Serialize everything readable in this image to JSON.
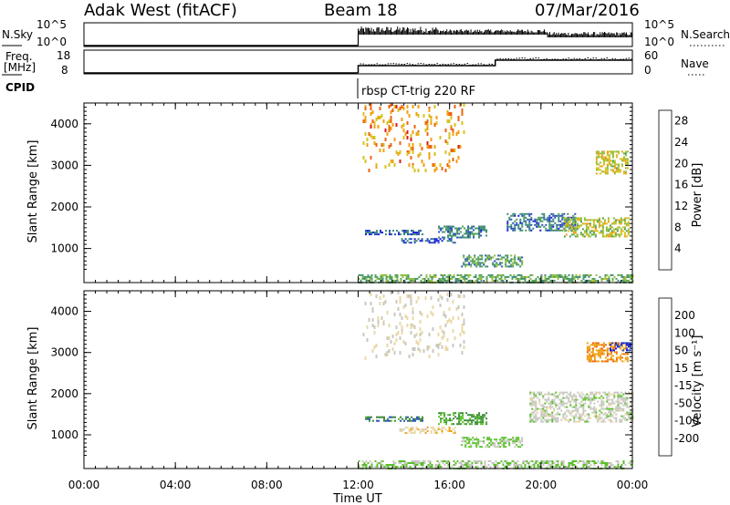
{
  "header": {
    "station": "Adak West (fitACF)",
    "beam": "Beam 18",
    "date": "07/Mar/2016"
  },
  "top_panels": {
    "nsky": {
      "label": "N.Sky",
      "ticks_left": [
        "10^5",
        "10^0"
      ],
      "ticks_right": [
        "10^5",
        "10^0"
      ],
      "right_label": "N.Search"
    },
    "freq": {
      "label_lines": [
        "Freq.",
        "[MHz]"
      ],
      "ticks_left": [
        "18",
        "8"
      ],
      "ticks_right": [
        "60",
        "0"
      ],
      "right_label": "Nave"
    },
    "cpid": {
      "label": "CPID",
      "program": "rbsp CT-trig 220 RF"
    }
  },
  "chart_data": [
    {
      "type": "heatmap",
      "name": "power",
      "xlabel": "",
      "ylabel": "Slant Range [km]",
      "x_ticks": [
        "00:00",
        "04:00",
        "08:00",
        "12:00",
        "16:00",
        "20:00",
        "00:00"
      ],
      "xlim_hours": [
        0,
        24
      ],
      "ylim_km": [
        180,
        4500
      ],
      "y_ticks": [
        1000,
        2000,
        3000,
        4000
      ],
      "colorbar": {
        "label": "Power [dB]",
        "ticks": [
          4,
          8,
          12,
          16,
          20,
          24,
          28
        ],
        "range": [
          0,
          30
        ],
        "colors": [
          "#1a1ae0",
          "#2a52b8",
          "#3d8a7a",
          "#4d9e5a",
          "#8cbe3c",
          "#d8c21e",
          "#f0a010",
          "#ee6410",
          "#e01818"
        ]
      },
      "echo_regions": [
        {
          "t": [
            12.0,
            24.0
          ],
          "r": [
            200,
            380
          ],
          "value": 12
        },
        {
          "t": [
            12.3,
            14.8
          ],
          "r": [
            1350,
            1450
          ],
          "value": 6
        },
        {
          "t": [
            13.8,
            16.2
          ],
          "r": [
            1150,
            1250
          ],
          "value": 5
        },
        {
          "t": [
            15.5,
            17.6
          ],
          "r": [
            1250,
            1550
          ],
          "value": 8
        },
        {
          "t": [
            16.5,
            19.2
          ],
          "r": [
            580,
            850
          ],
          "value": 10
        },
        {
          "t": [
            18.5,
            21.5
          ],
          "r": [
            1450,
            1850
          ],
          "value": 7
        },
        {
          "t": [
            21.0,
            23.8
          ],
          "r": [
            1300,
            1750
          ],
          "value": 16
        },
        {
          "t": [
            22.4,
            23.8
          ],
          "r": [
            2800,
            3350
          ],
          "value": 18
        },
        {
          "t": [
            12.2,
            16.6
          ],
          "r": [
            2900,
            4500
          ],
          "value": 22
        }
      ]
    },
    {
      "type": "heatmap",
      "name": "velocity",
      "xlabel": "Time UT",
      "ylabel": "Slant Range [km]",
      "x_ticks": [
        "00:00",
        "04:00",
        "08:00",
        "12:00",
        "16:00",
        "20:00",
        "00:00"
      ],
      "xlim_hours": [
        0,
        24
      ],
      "ylim_km": [
        180,
        4500
      ],
      "y_ticks": [
        1000,
        2000,
        3000,
        4000
      ],
      "colorbar": {
        "label": "Velocity [m s⁻¹]",
        "tick_labels": [
          "200",
          "100",
          "50",
          "15",
          "-15",
          "-50",
          "-100",
          "-200"
        ],
        "range": [
          -250,
          250
        ],
        "colors": [
          "#e01818",
          "#ee6410",
          "#f0a010",
          "#e8d8a8",
          "#c8c8c0",
          "#58c028",
          "#3a8a3a",
          "#2a52b8",
          "#1a1ae0"
        ]
      },
      "echo_regions": [
        {
          "t": [
            12.0,
            24.0
          ],
          "r": [
            200,
            380
          ],
          "value": 30
        },
        {
          "t": [
            12.3,
            14.8
          ],
          "r": [
            1350,
            1450
          ],
          "value": 120
        },
        {
          "t": [
            13.8,
            16.2
          ],
          "r": [
            1050,
            1200
          ],
          "value": -60
        },
        {
          "t": [
            15.5,
            17.6
          ],
          "r": [
            1250,
            1550
          ],
          "value": 90
        },
        {
          "t": [
            16.5,
            19.2
          ],
          "r": [
            700,
            950
          ],
          "value": 40
        },
        {
          "t": [
            19.5,
            24.0
          ],
          "r": [
            1300,
            2050
          ],
          "value": 0
        },
        {
          "t": [
            22.0,
            23.8
          ],
          "r": [
            2800,
            3250
          ],
          "value": -120
        },
        {
          "t": [
            23.0,
            23.9
          ],
          "r": [
            3050,
            3250
          ],
          "value": 200
        },
        {
          "t": [
            12.2,
            16.6
          ],
          "r": [
            2900,
            4500
          ],
          "value": -30
        }
      ]
    }
  ]
}
